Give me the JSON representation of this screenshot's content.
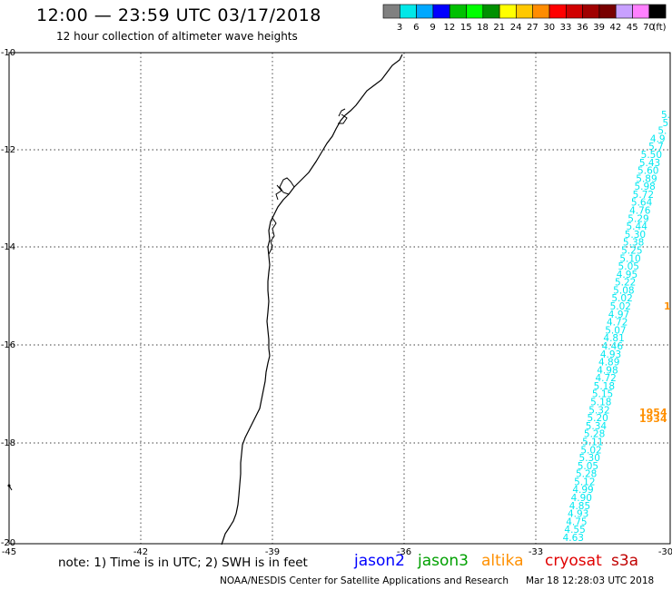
{
  "header": {
    "title": "12:00 — 23:59 UTC 03/17/2018",
    "subtitle": "12 hour collection of altimeter wave heights"
  },
  "legend": {
    "swatches": [
      "#808080",
      "#00e8e8",
      "#00a8ff",
      "#0000ff",
      "#00c000",
      "#00ff00",
      "#009000",
      "#ffff00",
      "#ffc800",
      "#ff8c00",
      "#ff0000",
      "#d00000",
      "#a00000",
      "#780000",
      "#c8a0ff",
      "#ff80ff",
      "#000000"
    ],
    "labels": [
      "3",
      "6",
      "9",
      "12",
      "15",
      "18",
      "21",
      "24",
      "27",
      "30",
      "33",
      "36",
      "39",
      "42",
      "45",
      "70"
    ],
    "unit": "(ft)"
  },
  "axes": {
    "lat_labels": [
      "-10",
      "-12",
      "-14",
      "-16",
      "-18",
      "-20"
    ],
    "lon_labels": [
      "-45",
      "-42",
      "-39",
      "-36",
      "-33",
      "-30"
    ]
  },
  "tracks": {
    "cyan_color": "#00e8f0",
    "orange_color": "#ff9000",
    "cyan_labels": [
      "5.",
      "5",
      "5.",
      "4.9",
      "5.7",
      "5.50",
      "5.43",
      "5.60",
      "5.89",
      "5.98",
      "5.72",
      "5.64",
      "4.76",
      "5.29",
      "5.44",
      "5.30",
      "5.38",
      "5.25",
      "5.10",
      "5.05",
      "4.95",
      "5.22",
      "5.08",
      "5.02",
      "5.02",
      "4.97",
      "4.72",
      "5.07",
      "4.81",
      "4.46",
      "4.93",
      "4.89",
      "4.98",
      "4.72",
      "5.18",
      "5.15",
      "5.18",
      "5.32",
      "5.20",
      "5.34",
      "5.28",
      "5.11",
      "5.02",
      "5.30",
      "5.05",
      "5.28",
      "5.12",
      "4.99",
      "4.90",
      "4.85",
      "4.93",
      "4.75",
      "4.55",
      "4.63"
    ],
    "orange_labels": [
      "1",
      "1954",
      "1934"
    ]
  },
  "footer": {
    "note": "note: 1) Time is in UTC; 2) SWH is in feet",
    "satellites": [
      {
        "name": "jason2",
        "color": "#0000ff"
      },
      {
        "name": "jason3",
        "color": "#00a000"
      },
      {
        "name": "altika",
        "color": "#ff9000"
      },
      {
        "name": "cryosat",
        "color": "#e00000"
      },
      {
        "name": "s3a",
        "color": "#c00000"
      }
    ],
    "credit": "NOAA/NESDIS Center for Satellite Applications and Research",
    "timestamp": "Mar 18 12:28:03 UTC 2018"
  }
}
